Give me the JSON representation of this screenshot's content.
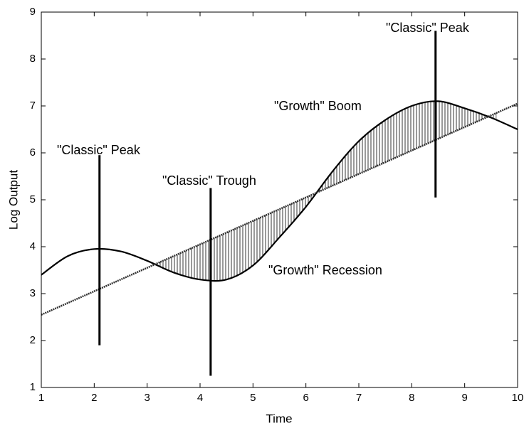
{
  "chart_data": {
    "type": "line",
    "xlabel": "Time",
    "ylabel": "Log Output",
    "x": [
      1,
      1.5,
      2,
      2.5,
      3,
      3.5,
      4,
      4.5,
      5,
      5.5,
      6,
      6.5,
      7,
      7.5,
      8,
      8.5,
      9,
      9.5,
      10
    ],
    "series": [
      {
        "color": "#000000",
        "style": "solid",
        "values": [
          3.4,
          3.8,
          3.95,
          3.9,
          3.7,
          3.45,
          3.3,
          3.3,
          3.6,
          4.2,
          4.85,
          5.6,
          6.25,
          6.7,
          7.0,
          7.1,
          6.95,
          6.75,
          6.5
        ]
      },
      {
        "color": "#333333",
        "style": "dotted",
        "values": [
          2.55,
          2.8,
          3.05,
          3.3,
          3.55,
          3.8,
          4.05,
          4.3,
          4.55,
          4.8,
          5.05,
          5.3,
          5.55,
          5.8,
          6.05,
          6.3,
          6.55,
          6.8,
          7.05
        ]
      }
    ],
    "shade_range": [
      3.2,
      9.6
    ],
    "vertical_lines": [
      {
        "x": 2.1,
        "ymin": 1.9,
        "ymax": 5.95
      },
      {
        "x": 4.2,
        "ymin": 1.25,
        "ymax": 5.25
      },
      {
        "x": 8.45,
        "ymin": 5.05,
        "ymax": 8.6
      }
    ],
    "annotations": [
      "\"Classic\" Peak",
      "\"Classic\" Trough",
      "\"Growth\" Boom",
      "\"Growth\" Recession",
      "\"Classic\" Peak"
    ],
    "xlim": [
      1,
      10
    ],
    "ylim": [
      1,
      9
    ],
    "xticks": [
      1,
      2,
      3,
      4,
      5,
      6,
      7,
      8,
      9,
      10
    ],
    "yticks": [
      1,
      2,
      3,
      4,
      5,
      6,
      7,
      8,
      9
    ]
  }
}
